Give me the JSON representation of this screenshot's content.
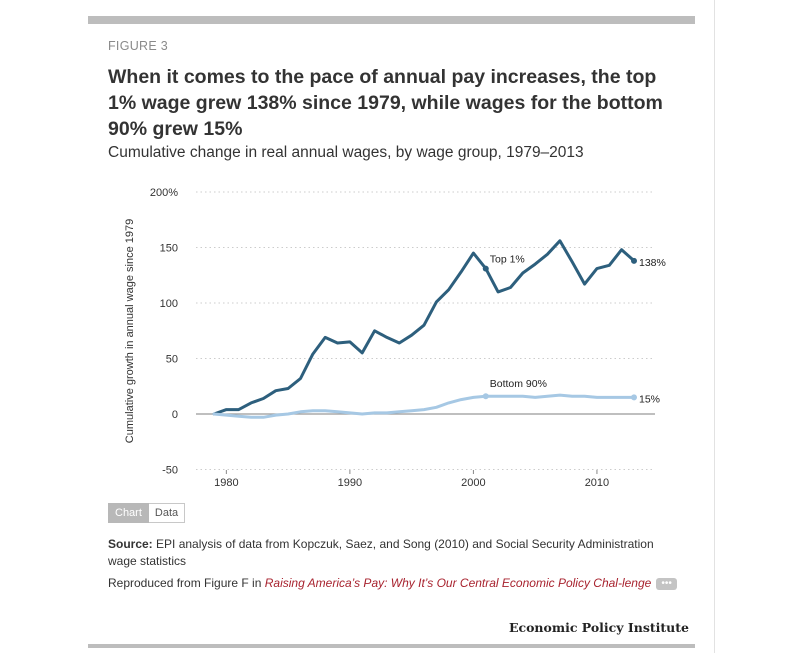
{
  "figure_label": "FIGURE 3",
  "title": "When it comes to the pace of annual pay increases, the top 1% wage grew 138% since 1979, while wages for the bottom 90% grew 15%",
  "subtitle": "Cumulative change in real annual wages, by wage group, 1979–2013",
  "tabs": {
    "chart_label": "Chart",
    "data_label": "Data"
  },
  "source": {
    "label": "Source:",
    "text": "EPI analysis of data from Kopczuk, Saez, and Song (2010) and Social Security Administration wage statistics"
  },
  "reproduced": {
    "prefix": "Reproduced from Figure F in ",
    "link_text": "Raising America’s Pay: Why It’s Our Central Economic Policy Chal-lenge",
    "more_label": "•••"
  },
  "brand": "Economic Policy Institute",
  "colors": {
    "top1": "#2d5f7d",
    "bottom90": "#a6c8e4",
    "grid": "#cccccc",
    "zero": "#999999"
  },
  "chart_data": {
    "type": "line",
    "ylabel": "Cumulative growth in annual wage since 1979",
    "xlabel": "",
    "xlim": [
      1979,
      2013
    ],
    "ylim": [
      -50,
      200
    ],
    "x_ticks": [
      1980,
      1990,
      2000,
      2010
    ],
    "y_ticks": [
      -50,
      0,
      50,
      100,
      150,
      200
    ],
    "y_tick_labels": [
      "-50",
      "0",
      "50",
      "100",
      "150",
      "200%"
    ],
    "grid": "horizontal dotted",
    "series": [
      {
        "name": "Top 1%",
        "label": "Top 1%",
        "end_label": "138%",
        "x": [
          1979,
          1980,
          1981,
          1982,
          1983,
          1984,
          1985,
          1986,
          1987,
          1988,
          1989,
          1990,
          1991,
          1992,
          1993,
          1994,
          1995,
          1996,
          1997,
          1998,
          1999,
          2000,
          2001,
          2002,
          2003,
          2004,
          2005,
          2006,
          2007,
          2008,
          2009,
          2010,
          2011,
          2012,
          2013
        ],
        "values": [
          0,
          4,
          4,
          10,
          14,
          21,
          23,
          32,
          54,
          69,
          64,
          65,
          55,
          75,
          69,
          64,
          71,
          80,
          101,
          112,
          128,
          145,
          131,
          110,
          114,
          127,
          135,
          144,
          156,
          137,
          117,
          131,
          134,
          148,
          138
        ]
      },
      {
        "name": "Bottom 90%",
        "label": "Bottom 90%",
        "end_label": "15%",
        "x": [
          1979,
          1980,
          1981,
          1982,
          1983,
          1984,
          1985,
          1986,
          1987,
          1988,
          1989,
          1990,
          1991,
          1992,
          1993,
          1994,
          1995,
          1996,
          1997,
          1998,
          1999,
          2000,
          2001,
          2002,
          2003,
          2004,
          2005,
          2006,
          2007,
          2008,
          2009,
          2010,
          2011,
          2012,
          2013
        ],
        "values": [
          0,
          -1,
          -2,
          -3,
          -3,
          -1,
          0,
          2,
          3,
          3,
          2,
          1,
          0,
          1,
          1,
          2,
          3,
          4,
          6,
          10,
          13,
          15,
          16,
          16,
          16,
          16,
          15,
          16,
          17,
          16,
          16,
          15,
          15,
          15,
          15
        ]
      }
    ],
    "markers": [
      {
        "series": "Top 1%",
        "x": 2001,
        "y": 131
      },
      {
        "series": "Bottom 90%",
        "x": 2001,
        "y": 16
      }
    ]
  }
}
